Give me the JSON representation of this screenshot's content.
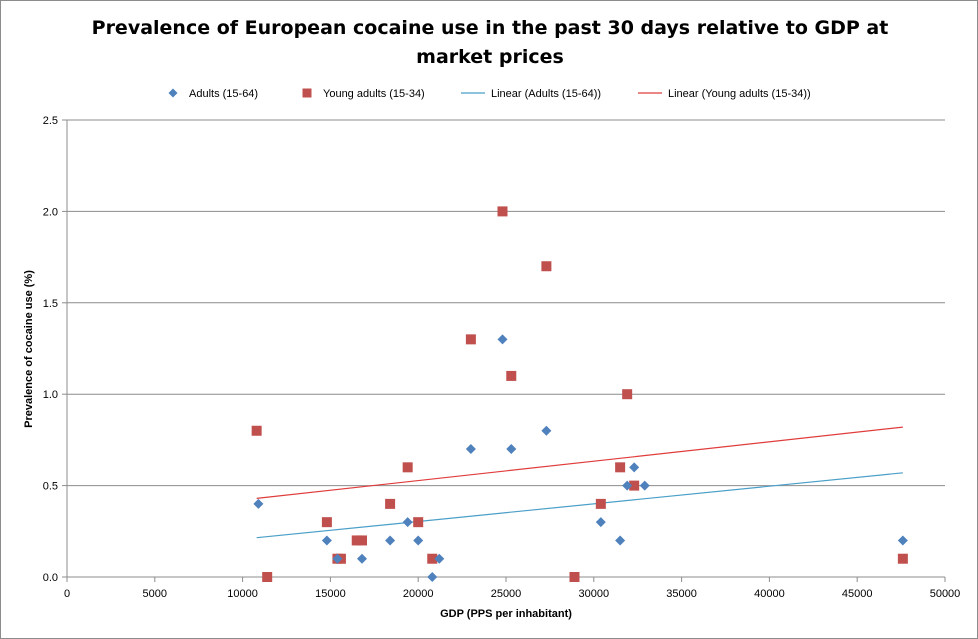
{
  "chart_data": {
    "type": "scatter",
    "title_lines": [
      "Prevalence of European cocaine use in the past 30 days relative to GDP at",
      "market prices"
    ],
    "xlabel": "GDP (PPS per inhabitant)",
    "ylabel": "Prevalence of cocaine  use  (%)",
    "xlim": [
      0,
      50000
    ],
    "ylim": [
      0,
      2.5
    ],
    "x_ticks": [
      0,
      5000,
      10000,
      15000,
      20000,
      25000,
      30000,
      35000,
      40000,
      45000,
      50000
    ],
    "y_ticks": [
      0.0,
      0.5,
      1.0,
      1.5,
      2.0,
      2.5
    ],
    "x_tick_labels": [
      "0",
      "5000",
      "10000",
      "15000",
      "20000",
      "25000",
      "30000",
      "35000",
      "40000",
      "45000",
      "50000"
    ],
    "y_tick_labels": [
      "0.0",
      "0.5",
      "1.0",
      "1.5",
      "2.0",
      "2.5"
    ],
    "grid": "horizontal",
    "legend_position": "top",
    "series": [
      {
        "name": "Adults (15-64)",
        "marker": "diamond",
        "color": "#4f81bd",
        "points": [
          [
            10900,
            0.4
          ],
          [
            14800,
            0.2
          ],
          [
            15400,
            0.1
          ],
          [
            16800,
            0.1
          ],
          [
            18400,
            0.2
          ],
          [
            19400,
            0.3
          ],
          [
            20000,
            0.2
          ],
          [
            20800,
            0.0
          ],
          [
            21200,
            0.1
          ],
          [
            23000,
            0.7
          ],
          [
            24800,
            1.3
          ],
          [
            25300,
            0.7
          ],
          [
            27300,
            0.8
          ],
          [
            30400,
            0.3
          ],
          [
            31500,
            0.2
          ],
          [
            31900,
            0.5
          ],
          [
            32300,
            0.6
          ],
          [
            32900,
            0.5
          ],
          [
            47600,
            0.2
          ]
        ]
      },
      {
        "name": "Young adults (15-34)",
        "marker": "square",
        "color": "#c0504d",
        "points": [
          [
            10800,
            0.8
          ],
          [
            11400,
            0.0
          ],
          [
            14800,
            0.3
          ],
          [
            15400,
            0.1
          ],
          [
            15600,
            0.1
          ],
          [
            16500,
            0.2
          ],
          [
            16800,
            0.2
          ],
          [
            18400,
            0.4
          ],
          [
            19400,
            0.6
          ],
          [
            20000,
            0.3
          ],
          [
            20800,
            0.1
          ],
          [
            23000,
            1.3
          ],
          [
            24800,
            2.0
          ],
          [
            25300,
            1.1
          ],
          [
            27300,
            1.7
          ],
          [
            28900,
            0.0
          ],
          [
            30400,
            0.4
          ],
          [
            31500,
            0.6
          ],
          [
            31900,
            1.0
          ],
          [
            32300,
            0.5
          ],
          [
            47600,
            0.1
          ]
        ]
      }
    ],
    "trendlines": [
      {
        "name": "Linear (Adults (15-64))",
        "color": "#4a9fc8",
        "from": [
          10800,
          0.215
        ],
        "to": [
          47600,
          0.57
        ]
      },
      {
        "name": "Linear (Young adults (15-34))",
        "color": "#e03c3c",
        "from": [
          10800,
          0.43
        ],
        "to": [
          47600,
          0.82
        ]
      }
    ]
  }
}
